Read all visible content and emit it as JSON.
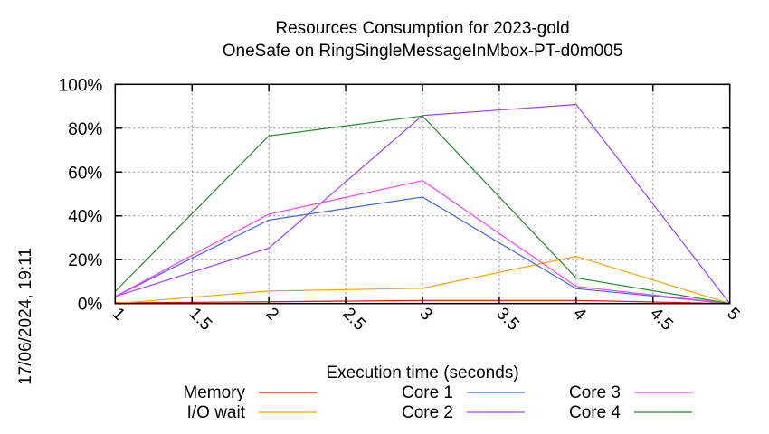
{
  "chart_data": {
    "type": "line",
    "title": "Resources Consumption for 2023-gold",
    "subtitle": "OneSafe on RingSingleMessageInMbox-PT-d0m005",
    "xlabel": "Execution time (seconds)",
    "ylabel": "",
    "xlim": [
      1,
      5
    ],
    "ylim": [
      0,
      100
    ],
    "x_ticks": [
      "1",
      "1.5",
      "2",
      "2.5",
      "3",
      "3.5",
      "4",
      "4.5",
      "5"
    ],
    "y_ticks": [
      "0%",
      "20%",
      "40%",
      "60%",
      "80%",
      "100%"
    ],
    "grid": true,
    "legend_position": "bottom",
    "x": [
      1,
      2,
      3,
      4,
      5
    ],
    "series": [
      {
        "name": "Memory",
        "color": "#ff0000",
        "values": [
          0.3,
          0.8,
          1.4,
          1.4,
          0
        ]
      },
      {
        "name": "I/O wait",
        "color": "#ffa500",
        "values": [
          0,
          5.7,
          7.0,
          21.5,
          0
        ]
      },
      {
        "name": "Core 1",
        "color": "#4169e1",
        "values": [
          3.2,
          38.1,
          48.6,
          6.8,
          0
        ]
      },
      {
        "name": "Core 2",
        "color": "#a040ff",
        "values": [
          3.2,
          25.3,
          85.8,
          90.8,
          0
        ]
      },
      {
        "name": "Core 3",
        "color": "#ff40ff",
        "values": [
          3.2,
          40.8,
          56.1,
          7.8,
          0
        ]
      },
      {
        "name": "Core 4",
        "color": "#228b22",
        "values": [
          5.5,
          76.5,
          85.6,
          11.7,
          0
        ]
      }
    ]
  },
  "timestamp": "17/06/2024, 19:11"
}
